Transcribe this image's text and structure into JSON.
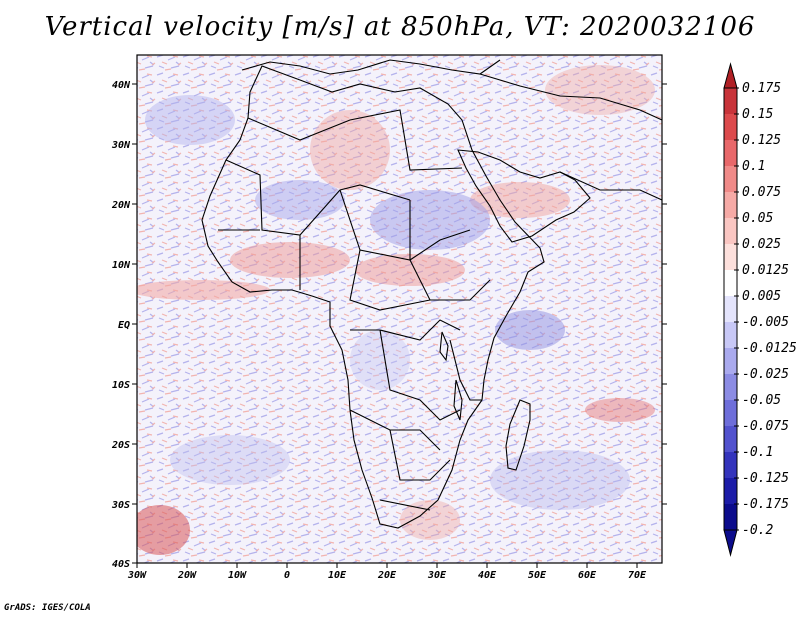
{
  "title": "Vertical velocity [m/s] at 850hPa, VT: 2020032106",
  "credit": "GrADS: IGES/COLA",
  "map": {
    "lon_range": [
      -30,
      75
    ],
    "lat_range": [
      -40,
      45
    ],
    "lat_ticks": [
      "40N",
      "30N",
      "20N",
      "10N",
      "EQ",
      "10S",
      "20S",
      "30S",
      "40S"
    ],
    "lon_ticks": [
      "30W",
      "20W",
      "10W",
      "0",
      "10E",
      "20E",
      "30E",
      "40E",
      "50E",
      "60E",
      "70E"
    ],
    "features": [
      "Africa",
      "Arabian Peninsula",
      "Madagascar",
      "Southern Europe"
    ]
  },
  "colorbar": {
    "labels": [
      "0.175",
      "0.15",
      "0.125",
      "0.1",
      "0.075",
      "0.05",
      "0.025",
      "0.0125",
      "0.005",
      "-0.005",
      "-0.0125",
      "-0.025",
      "-0.05",
      "-0.075",
      "-0.1",
      "-0.125",
      "-0.175",
      "-0.2"
    ],
    "colors": [
      "#b02025",
      "#c8343a",
      "#dc4a4c",
      "#e8686a",
      "#f08a88",
      "#f6aaa6",
      "#fac6c2",
      "#fde0dc",
      "#ffffff",
      "#e4e4fc",
      "#c8c8f6",
      "#aaaaee",
      "#8c8ce4",
      "#6e6eda",
      "#5252ce",
      "#3434bc",
      "#1c1ca8",
      "#0c0c8c"
    ]
  }
}
